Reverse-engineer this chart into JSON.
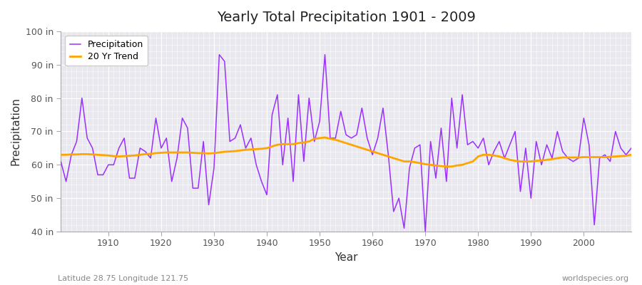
{
  "title": "Yearly Total Precipitation 1901 - 2009",
  "xlabel": "Year",
  "ylabel": "Precipitation",
  "subtitle_left": "Latitude 28.75 Longitude 121.75",
  "subtitle_right": "worldspecies.org",
  "years": [
    1901,
    1902,
    1903,
    1904,
    1905,
    1906,
    1907,
    1908,
    1909,
    1910,
    1911,
    1912,
    1913,
    1914,
    1915,
    1916,
    1917,
    1918,
    1919,
    1920,
    1921,
    1922,
    1923,
    1924,
    1925,
    1926,
    1927,
    1928,
    1929,
    1930,
    1931,
    1932,
    1933,
    1934,
    1935,
    1936,
    1937,
    1938,
    1939,
    1940,
    1941,
    1942,
    1943,
    1944,
    1945,
    1946,
    1947,
    1948,
    1949,
    1950,
    1951,
    1952,
    1953,
    1954,
    1955,
    1956,
    1957,
    1958,
    1959,
    1960,
    1961,
    1962,
    1963,
    1964,
    1965,
    1966,
    1967,
    1968,
    1969,
    1970,
    1971,
    1972,
    1973,
    1974,
    1975,
    1976,
    1977,
    1978,
    1979,
    1980,
    1981,
    1982,
    1983,
    1984,
    1985,
    1986,
    1987,
    1988,
    1989,
    1990,
    1991,
    1992,
    1993,
    1994,
    1995,
    1996,
    1997,
    1998,
    1999,
    2000,
    2001,
    2002,
    2003,
    2004,
    2005,
    2006,
    2007,
    2008,
    2009
  ],
  "precip": [
    61,
    55,
    63,
    67,
    80,
    68,
    65,
    57,
    57,
    60,
    60,
    65,
    68,
    56,
    56,
    65,
    64,
    62,
    74,
    65,
    68,
    55,
    62,
    74,
    71,
    53,
    53,
    67,
    48,
    59,
    93,
    91,
    67,
    68,
    72,
    65,
    68,
    60,
    55,
    51,
    75,
    81,
    60,
    74,
    55,
    81,
    61,
    80,
    67,
    73,
    93,
    68,
    68,
    76,
    69,
    68,
    69,
    77,
    68,
    63,
    68,
    77,
    63,
    46,
    50,
    41,
    59,
    65,
    66,
    40,
    67,
    56,
    71,
    55,
    80,
    65,
    81,
    66,
    67,
    65,
    68,
    60,
    64,
    67,
    62,
    66,
    70,
    52,
    65,
    50,
    67,
    60,
    66,
    62,
    70,
    64,
    62,
    61,
    62,
    74,
    66,
    42,
    62,
    63,
    61,
    70,
    65,
    63,
    65
  ],
  "trend": [
    63.0,
    63.0,
    63.1,
    63.1,
    63.2,
    63.2,
    63.1,
    63.0,
    62.9,
    62.8,
    62.6,
    62.5,
    62.6,
    62.7,
    62.8,
    63.0,
    63.2,
    63.3,
    63.5,
    63.6,
    63.7,
    63.7,
    63.7,
    63.7,
    63.7,
    63.6,
    63.5,
    63.5,
    63.4,
    63.5,
    63.7,
    63.9,
    64.0,
    64.1,
    64.3,
    64.5,
    64.6,
    64.7,
    64.8,
    65.0,
    65.5,
    66.0,
    66.2,
    66.2,
    66.2,
    66.5,
    66.7,
    67.0,
    67.8,
    68.0,
    68.2,
    67.8,
    67.5,
    67.0,
    66.5,
    66.0,
    65.5,
    65.0,
    64.5,
    64.0,
    63.5,
    63.0,
    62.5,
    62.0,
    61.5,
    61.0,
    61.0,
    60.8,
    60.5,
    60.2,
    60.0,
    59.8,
    59.6,
    59.5,
    59.5,
    59.8,
    60.0,
    60.5,
    61.0,
    62.5,
    63.0,
    63.0,
    62.8,
    62.5,
    62.0,
    61.5,
    61.2,
    61.0,
    61.0,
    61.0,
    61.2,
    61.3,
    61.5,
    61.7,
    62.0,
    62.2,
    62.2,
    62.2,
    62.2,
    62.3,
    62.3,
    62.3,
    62.3,
    62.3,
    62.4,
    62.5,
    62.6,
    62.7,
    63.0
  ],
  "precip_color": "#9B30FF",
  "trend_color": "#FFA500",
  "bg_color": "#FFFFFF",
  "plot_bg_color": "#E8E8EE",
  "grid_major_color": "#FFFFFF",
  "grid_minor_color": "#FFFFFF",
  "ylim": [
    40,
    100
  ],
  "yticks": [
    40,
    50,
    60,
    70,
    80,
    90,
    100
  ],
  "xlim": [
    1901,
    2009
  ],
  "xticks": [
    1910,
    1920,
    1930,
    1940,
    1950,
    1960,
    1970,
    1980,
    1990,
    2000
  ]
}
